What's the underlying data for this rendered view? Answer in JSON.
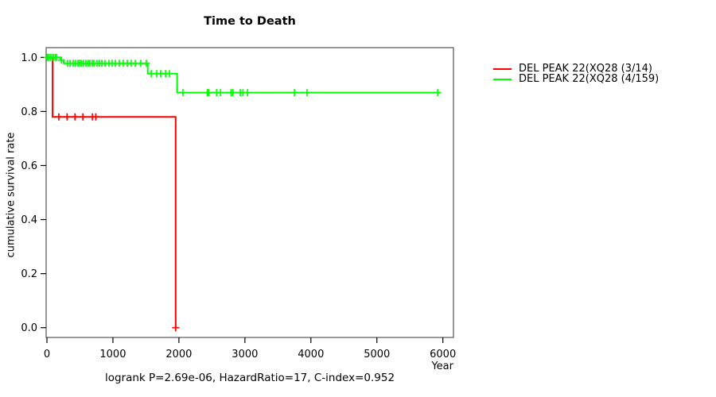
{
  "colors": {
    "red_series": "#FF0000",
    "green_series": "#00FF00",
    "box": "#606060",
    "tick": "#000000",
    "text": "#000000",
    "background": "#FFFFFF"
  },
  "chart_data": {
    "type": "line",
    "subtype": "kaplan-meier-step-survival",
    "title": "Time to Death",
    "xlabel": "Year",
    "ylabel": "cumulative survival rate",
    "annotation": "logrank P=2.69e-06, HazardRatio=17, C-index=0.952",
    "xlim": [
      0,
      6000
    ],
    "ylim": [
      0.0,
      1.0
    ],
    "xticks": [
      0,
      1000,
      2000,
      3000,
      4000,
      5000,
      6000
    ],
    "yticks": [
      0.0,
      0.2,
      0.4,
      0.6,
      0.8,
      1.0
    ],
    "grid": false,
    "legend_position": "right-outside",
    "series": [
      {
        "name": "DEL PEAK 22(XQ28 (3/14)",
        "color": "#FF0000",
        "points": [
          [
            0,
            1.0
          ],
          [
            85,
            1.0
          ],
          [
            85,
            0.78
          ],
          [
            1950,
            0.78
          ],
          [
            1950,
            0.0
          ]
        ],
        "censors": [
          [
            180,
            0.78
          ],
          [
            305,
            0.78
          ],
          [
            425,
            0.78
          ],
          [
            545,
            0.78
          ],
          [
            690,
            0.78
          ],
          [
            740,
            0.78
          ],
          [
            1950,
            0.0
          ]
        ]
      },
      {
        "name": "DEL PEAK 22(XQ28 (4/159)",
        "color": "#00FF00",
        "points": [
          [
            0,
            1.0
          ],
          [
            205,
            1.0
          ],
          [
            205,
            0.99
          ],
          [
            253,
            0.99
          ],
          [
            253,
            0.978
          ],
          [
            1528,
            0.978
          ],
          [
            1528,
            0.94
          ],
          [
            1972,
            0.94
          ],
          [
            1972,
            0.87
          ],
          [
            5950,
            0.87
          ]
        ],
        "censors": [
          [
            6,
            1.0
          ],
          [
            25,
            1.0
          ],
          [
            50,
            1.0
          ],
          [
            75,
            1.0
          ],
          [
            100,
            1.0
          ],
          [
            125,
            1.0
          ],
          [
            148,
            1.0
          ],
          [
            220,
            0.99
          ],
          [
            313,
            0.978
          ],
          [
            350,
            0.978
          ],
          [
            398,
            0.978
          ],
          [
            434,
            0.978
          ],
          [
            470,
            0.978
          ],
          [
            494,
            0.978
          ],
          [
            518,
            0.978
          ],
          [
            555,
            0.978
          ],
          [
            591,
            0.978
          ],
          [
            627,
            0.978
          ],
          [
            651,
            0.978
          ],
          [
            687,
            0.978
          ],
          [
            711,
            0.978
          ],
          [
            760,
            0.978
          ],
          [
            796,
            0.978
          ],
          [
            832,
            0.978
          ],
          [
            880,
            0.978
          ],
          [
            940,
            0.978
          ],
          [
            989,
            0.978
          ],
          [
            1037,
            0.978
          ],
          [
            1097,
            0.978
          ],
          [
            1157,
            0.978
          ],
          [
            1218,
            0.978
          ],
          [
            1278,
            0.978
          ],
          [
            1338,
            0.978
          ],
          [
            1423,
            0.978
          ],
          [
            1507,
            0.978
          ],
          [
            1580,
            0.94
          ],
          [
            1664,
            0.94
          ],
          [
            1724,
            0.94
          ],
          [
            1797,
            0.94
          ],
          [
            1857,
            0.94
          ],
          [
            2060,
            0.87
          ],
          [
            2430,
            0.87
          ],
          [
            2450,
            0.87
          ],
          [
            2570,
            0.87
          ],
          [
            2630,
            0.87
          ],
          [
            2790,
            0.87
          ],
          [
            2820,
            0.87
          ],
          [
            2930,
            0.87
          ],
          [
            2970,
            0.87
          ],
          [
            3040,
            0.87
          ],
          [
            3750,
            0.87
          ],
          [
            3940,
            0.87
          ],
          [
            5920,
            0.87
          ]
        ]
      }
    ]
  }
}
